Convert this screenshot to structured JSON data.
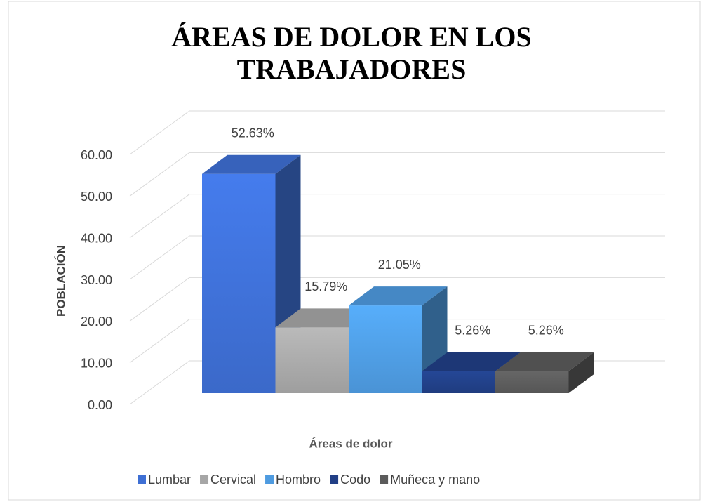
{
  "chart_data": {
    "type": "bar3d",
    "title": "ÁREAS DE DOLOR EN LOS TRABAJADORES",
    "y_label": "POBLACIÓN",
    "x_label": "Áreas de dolor",
    "series": [
      {
        "name": "Lumbar",
        "color": "#3e6fd4",
        "values": [
          52.63
        ],
        "value_labels": [
          "52.63%"
        ]
      },
      {
        "name": "Cervical",
        "color": "#a6a6a6",
        "values": [
          15.79
        ],
        "value_labels": [
          "15.79%"
        ]
      },
      {
        "name": "Hombro",
        "color": "#4e9be0",
        "values": [
          21.05
        ],
        "value_labels": [
          "21.05%"
        ]
      },
      {
        "name": "Codo",
        "color": "#213f86",
        "values": [
          5.26
        ],
        "value_labels": [
          "5.26%"
        ]
      },
      {
        "name": "Muñeca y mano",
        "color": "#5b5b5b",
        "values": [
          5.26
        ],
        "value_labels": [
          "5.26%"
        ]
      }
    ],
    "ylim": [
      0,
      60
    ],
    "yticks": [
      {
        "value": 0,
        "label": "0.00"
      },
      {
        "value": 10,
        "label": "10.00"
      },
      {
        "value": 20,
        "label": "20.00"
      },
      {
        "value": 30,
        "label": "30.00"
      },
      {
        "value": 40,
        "label": "40.00"
      },
      {
        "value": 50,
        "label": "50.00"
      },
      {
        "value": 60,
        "label": "60.00"
      }
    ],
    "grid": true,
    "legend": "bottom"
  }
}
